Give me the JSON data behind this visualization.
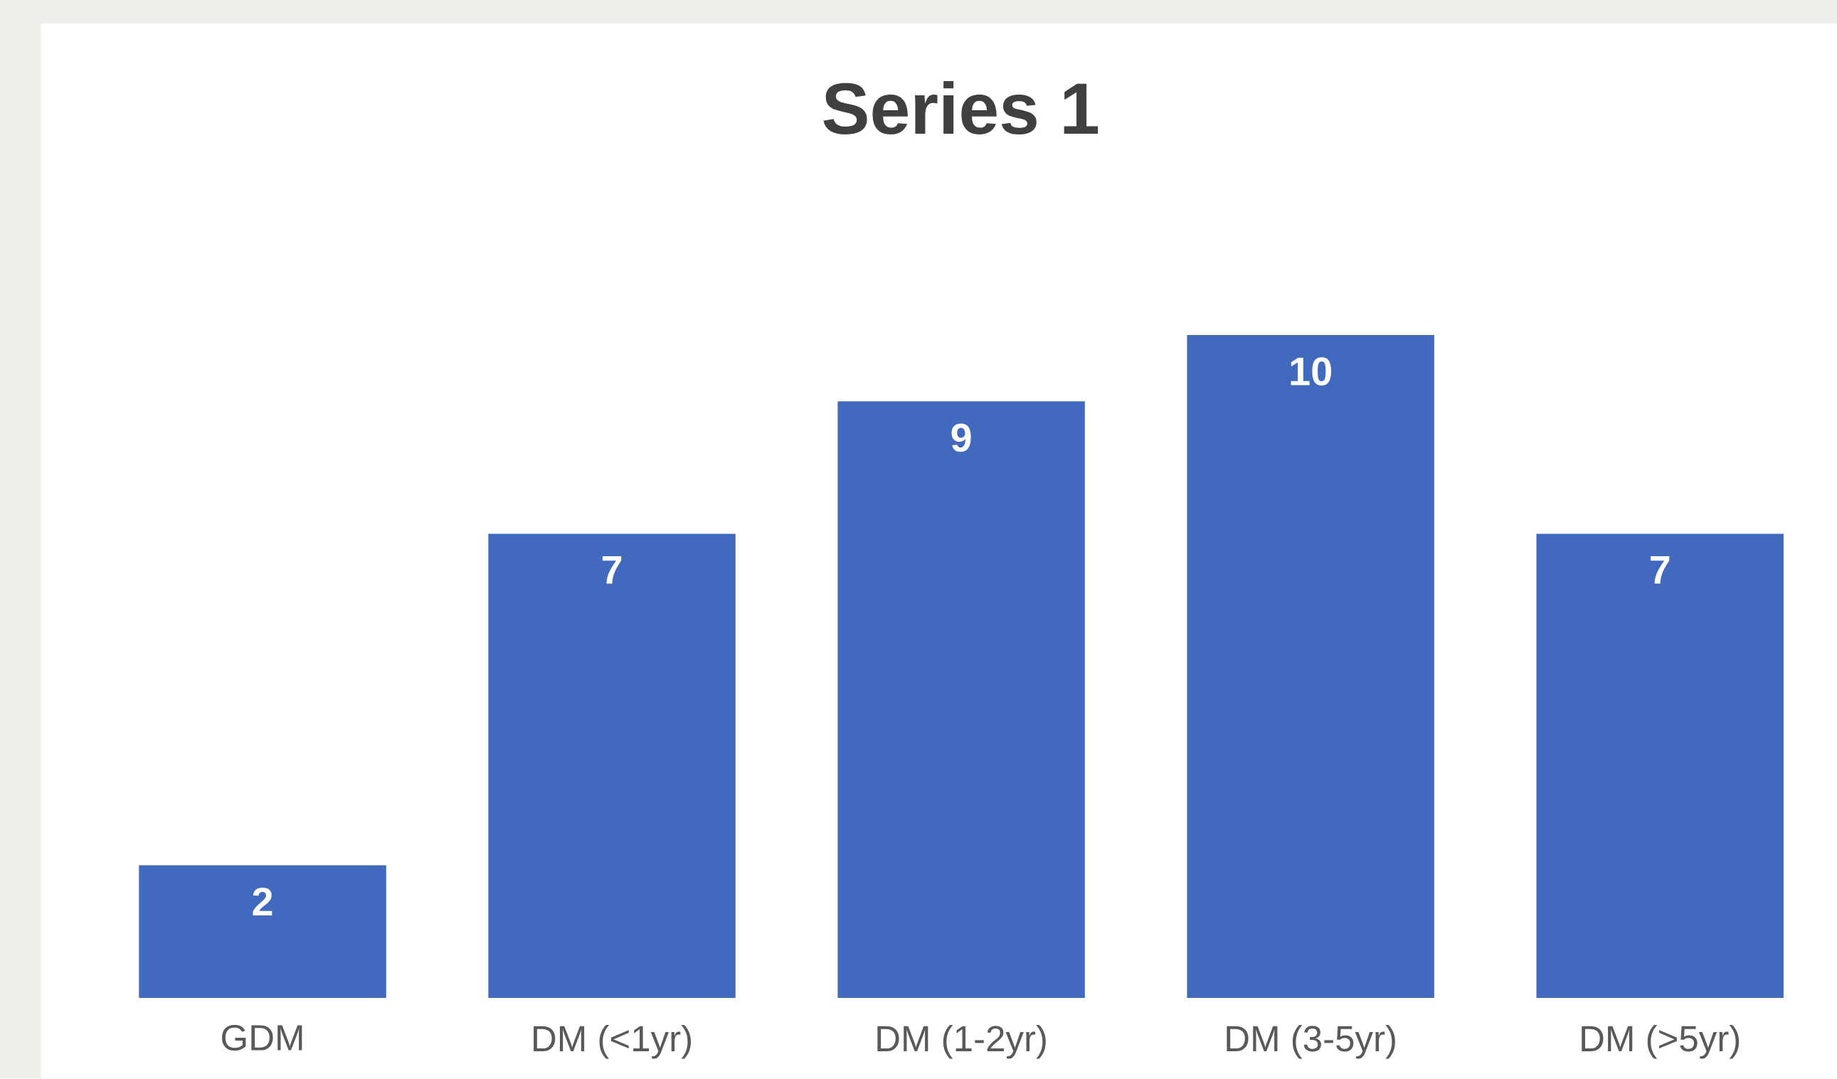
{
  "chart_data": {
    "type": "bar",
    "title": "Series 1",
    "categories": [
      "GDM",
      "DM (<1yr)",
      "DM (1-2yr)",
      "DM (3-5yr)",
      "DM (>5yr)"
    ],
    "values": [
      2,
      7,
      9,
      10,
      7
    ],
    "color": "#4169bd",
    "data_labels": true
  }
}
